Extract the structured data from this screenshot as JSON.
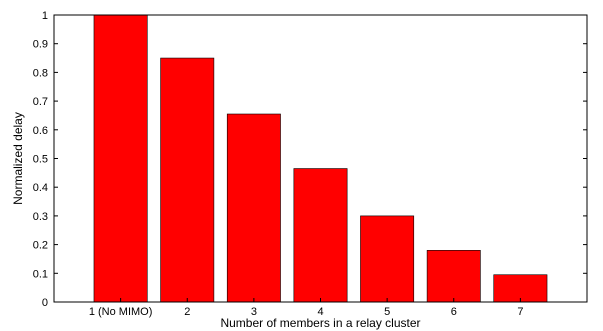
{
  "chart_data": {
    "type": "bar",
    "title": "",
    "xlabel": "Number of members in a relay cluster",
    "ylabel": "Normalized delay",
    "categories": [
      "1 (No MIMO)",
      "2",
      "3",
      "4",
      "5",
      "6",
      "7"
    ],
    "values": [
      1.0,
      0.85,
      0.655,
      0.465,
      0.3,
      0.18,
      0.095
    ],
    "ylim": [
      0,
      1
    ],
    "yticks": [
      0,
      0.1,
      0.2,
      0.3,
      0.4,
      0.5,
      0.6,
      0.7,
      0.8,
      0.9,
      1
    ],
    "yticklabels": [
      "0",
      "0.1",
      "0.2",
      "0.3",
      "0.4",
      "0.5",
      "0.6",
      "0.7",
      "0.8",
      "0.9",
      "1"
    ],
    "grid": false,
    "legend": "none",
    "colors": {
      "bar": "#ff0000",
      "axis": "#000000",
      "background": "#ffffff"
    }
  }
}
